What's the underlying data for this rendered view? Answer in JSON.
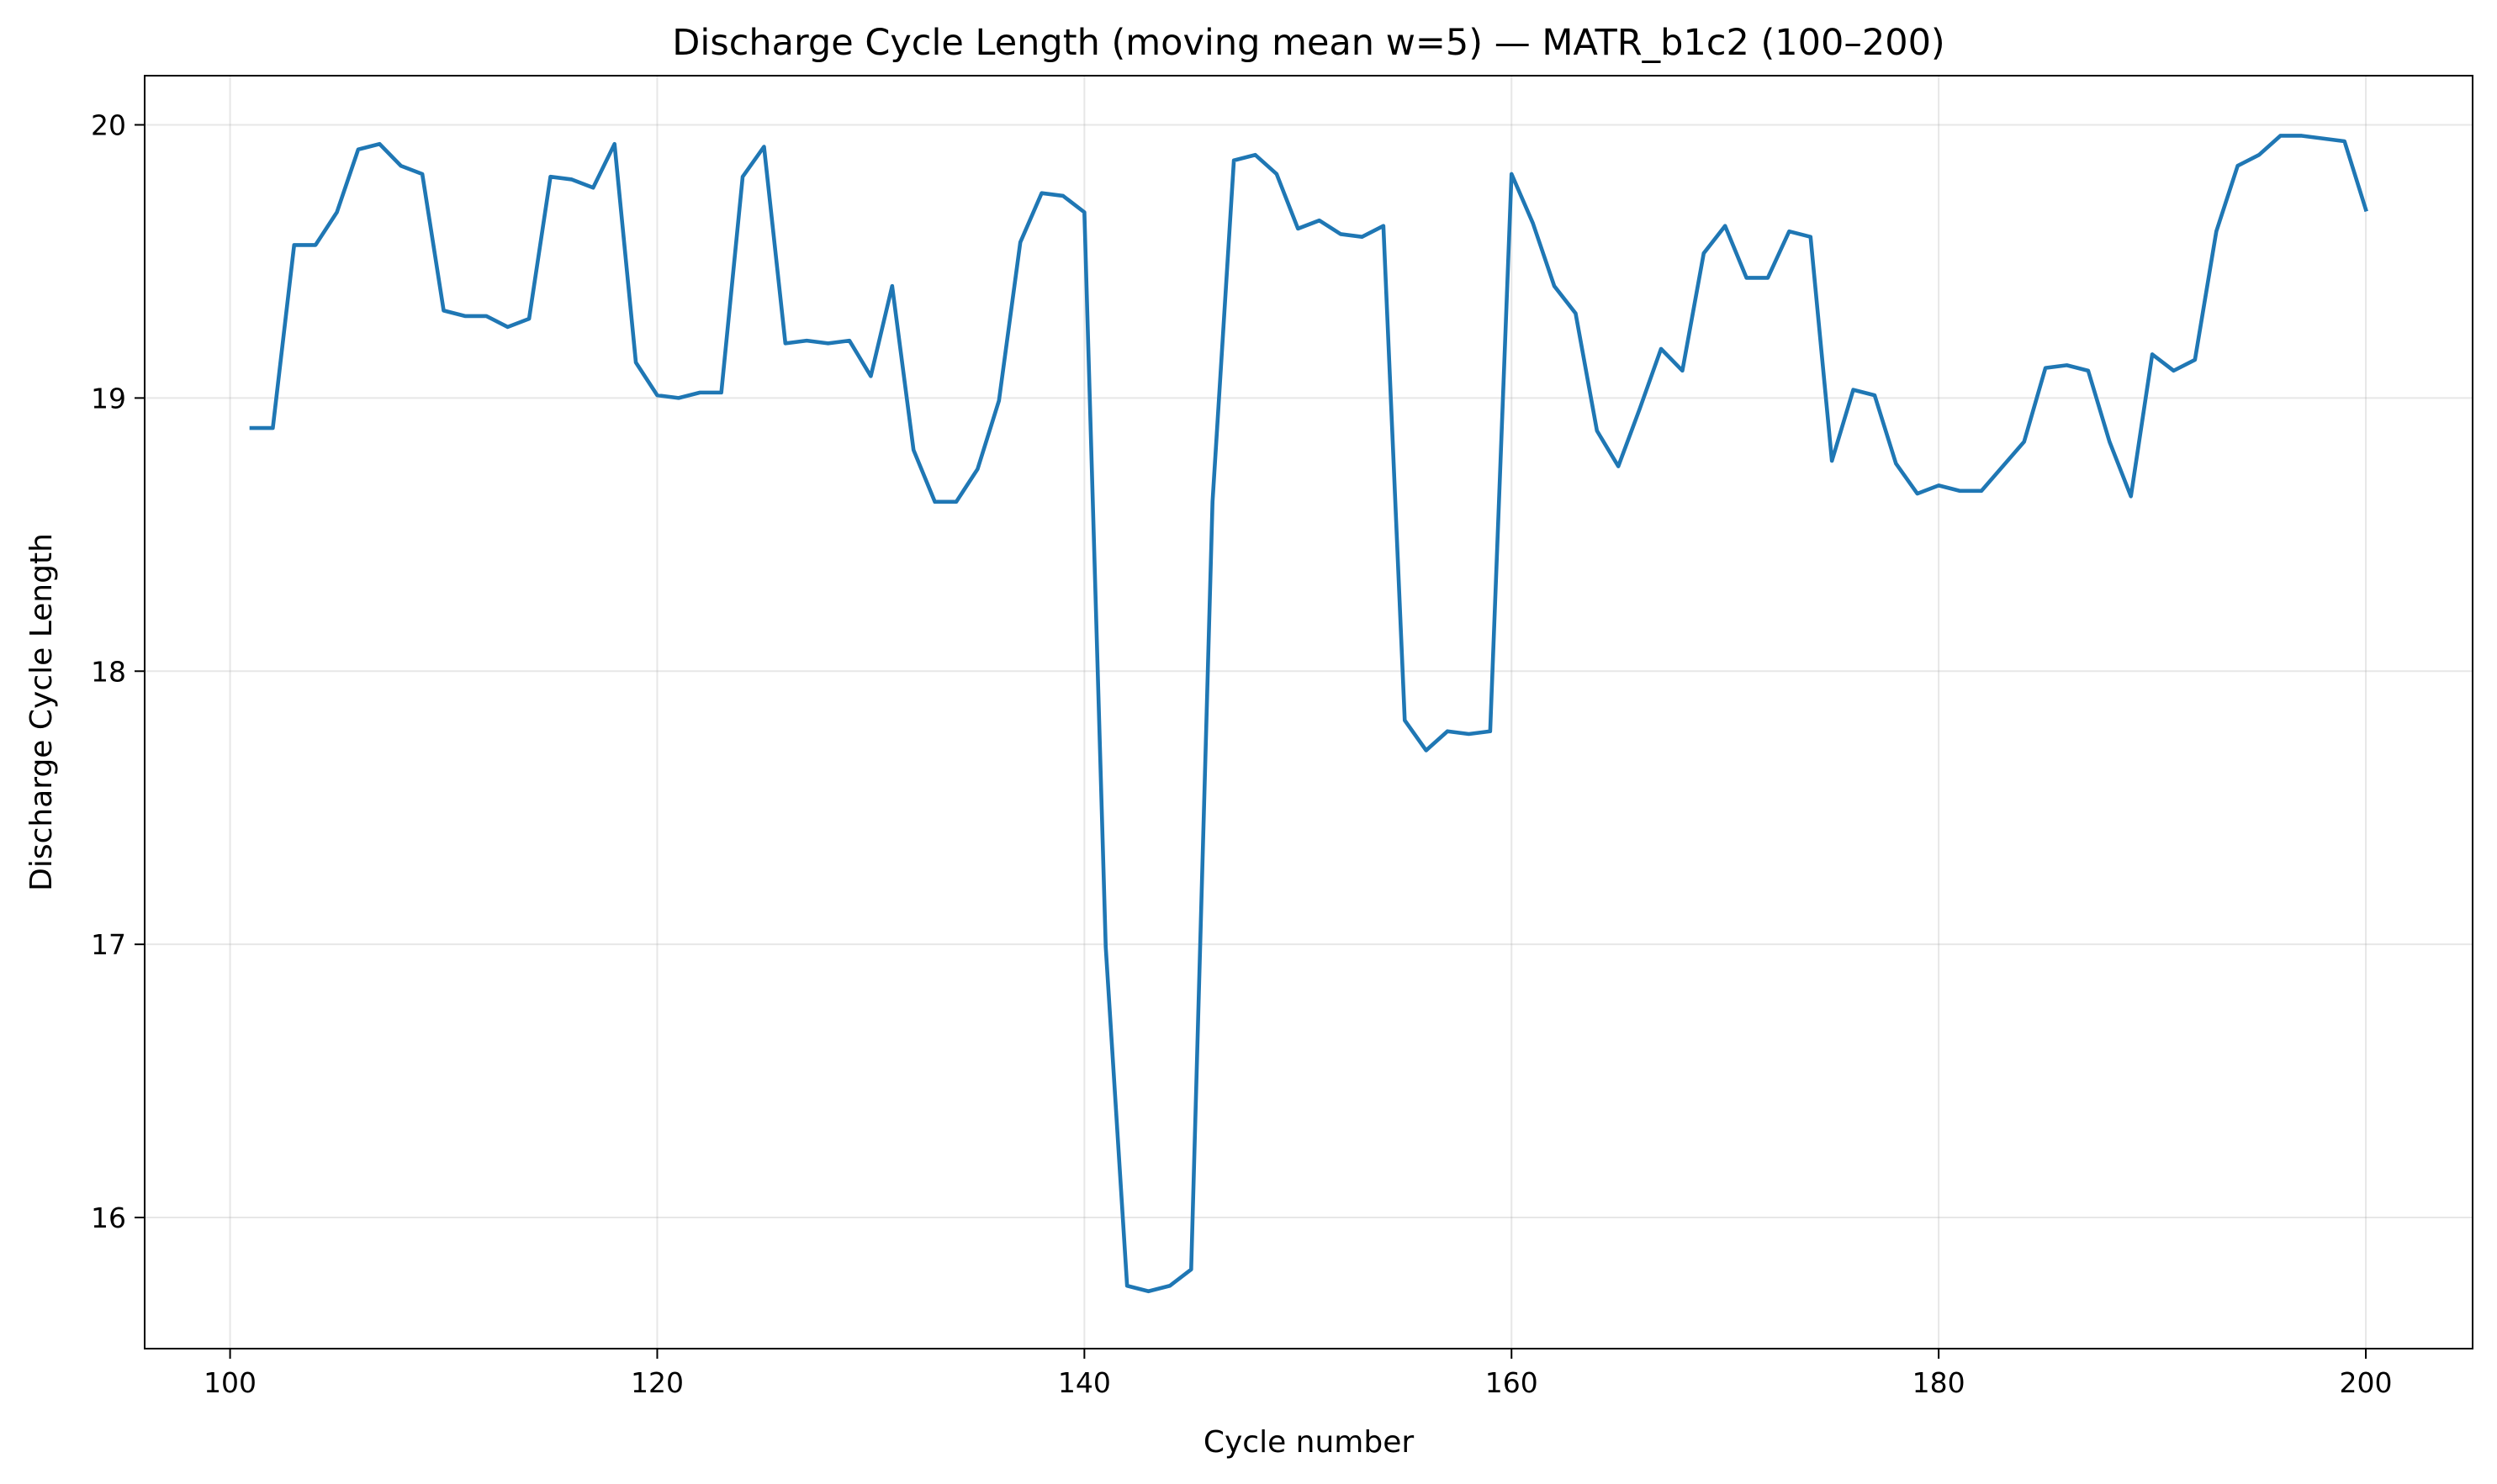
{
  "chart_data": {
    "type": "line",
    "title": "Discharge Cycle Length (moving mean w=5) — MATR_b1c2 (100–200)",
    "xlabel": "Cycle number",
    "ylabel": "Discharge Cycle Length",
    "xlim": [
      96,
      205
    ],
    "ylim": [
      15.52,
      20.18
    ],
    "xticks": [
      100,
      120,
      140,
      160,
      180,
      200
    ],
    "yticks": [
      16,
      17,
      18,
      19,
      20
    ],
    "grid": true,
    "legend": "none",
    "series": [
      {
        "color": "#1f77b4",
        "x": [
          101,
          102,
          103,
          104,
          105,
          106,
          107,
          108,
          109,
          110,
          111,
          112,
          113,
          114,
          115,
          116,
          117,
          118,
          119,
          120,
          121,
          122,
          123,
          124,
          125,
          126,
          127,
          128,
          129,
          130,
          131,
          132,
          133,
          134,
          135,
          136,
          137,
          138,
          139,
          140,
          141,
          142,
          143,
          144,
          145,
          146,
          147,
          148,
          149,
          150,
          151,
          152,
          153,
          154,
          155,
          156,
          157,
          158,
          159,
          160,
          161,
          162,
          163,
          164,
          165,
          166,
          167,
          168,
          169,
          170,
          171,
          172,
          173,
          174,
          175,
          176,
          177,
          178,
          179,
          180,
          181,
          182,
          183,
          184,
          185,
          186,
          187,
          188,
          189,
          190,
          191,
          192,
          193,
          194,
          195,
          196,
          197,
          198,
          199,
          200
        ],
        "y": [
          18.89,
          18.89,
          19.56,
          19.56,
          19.68,
          19.91,
          19.93,
          19.85,
          19.82,
          19.32,
          19.3,
          19.3,
          19.26,
          19.29,
          19.81,
          19.8,
          19.77,
          19.93,
          19.13,
          19.01,
          19.0,
          19.02,
          19.02,
          19.81,
          19.92,
          19.2,
          19.21,
          19.2,
          19.21,
          19.08,
          19.41,
          18.81,
          18.62,
          18.62,
          18.74,
          18.99,
          19.57,
          19.75,
          19.74,
          19.68,
          16.99,
          15.75,
          15.73,
          15.75,
          15.81,
          18.62,
          19.87,
          19.89,
          19.82,
          19.62,
          19.65,
          19.6,
          19.59,
          19.63,
          17.82,
          17.71,
          17.78,
          17.77,
          17.78,
          19.82,
          19.64,
          19.41,
          19.31,
          18.88,
          18.75,
          18.96,
          19.18,
          19.1,
          19.53,
          19.63,
          19.44,
          19.44,
          19.61,
          19.59,
          18.77,
          19.03,
          19.01,
          18.76,
          18.65,
          18.68,
          18.66,
          18.66,
          18.75,
          18.84,
          19.11,
          19.12,
          19.1,
          18.84,
          18.64,
          19.16,
          19.1,
          19.14,
          19.61,
          19.85,
          19.89,
          19.96,
          19.96,
          19.95,
          19.94,
          19.69
        ]
      }
    ]
  }
}
